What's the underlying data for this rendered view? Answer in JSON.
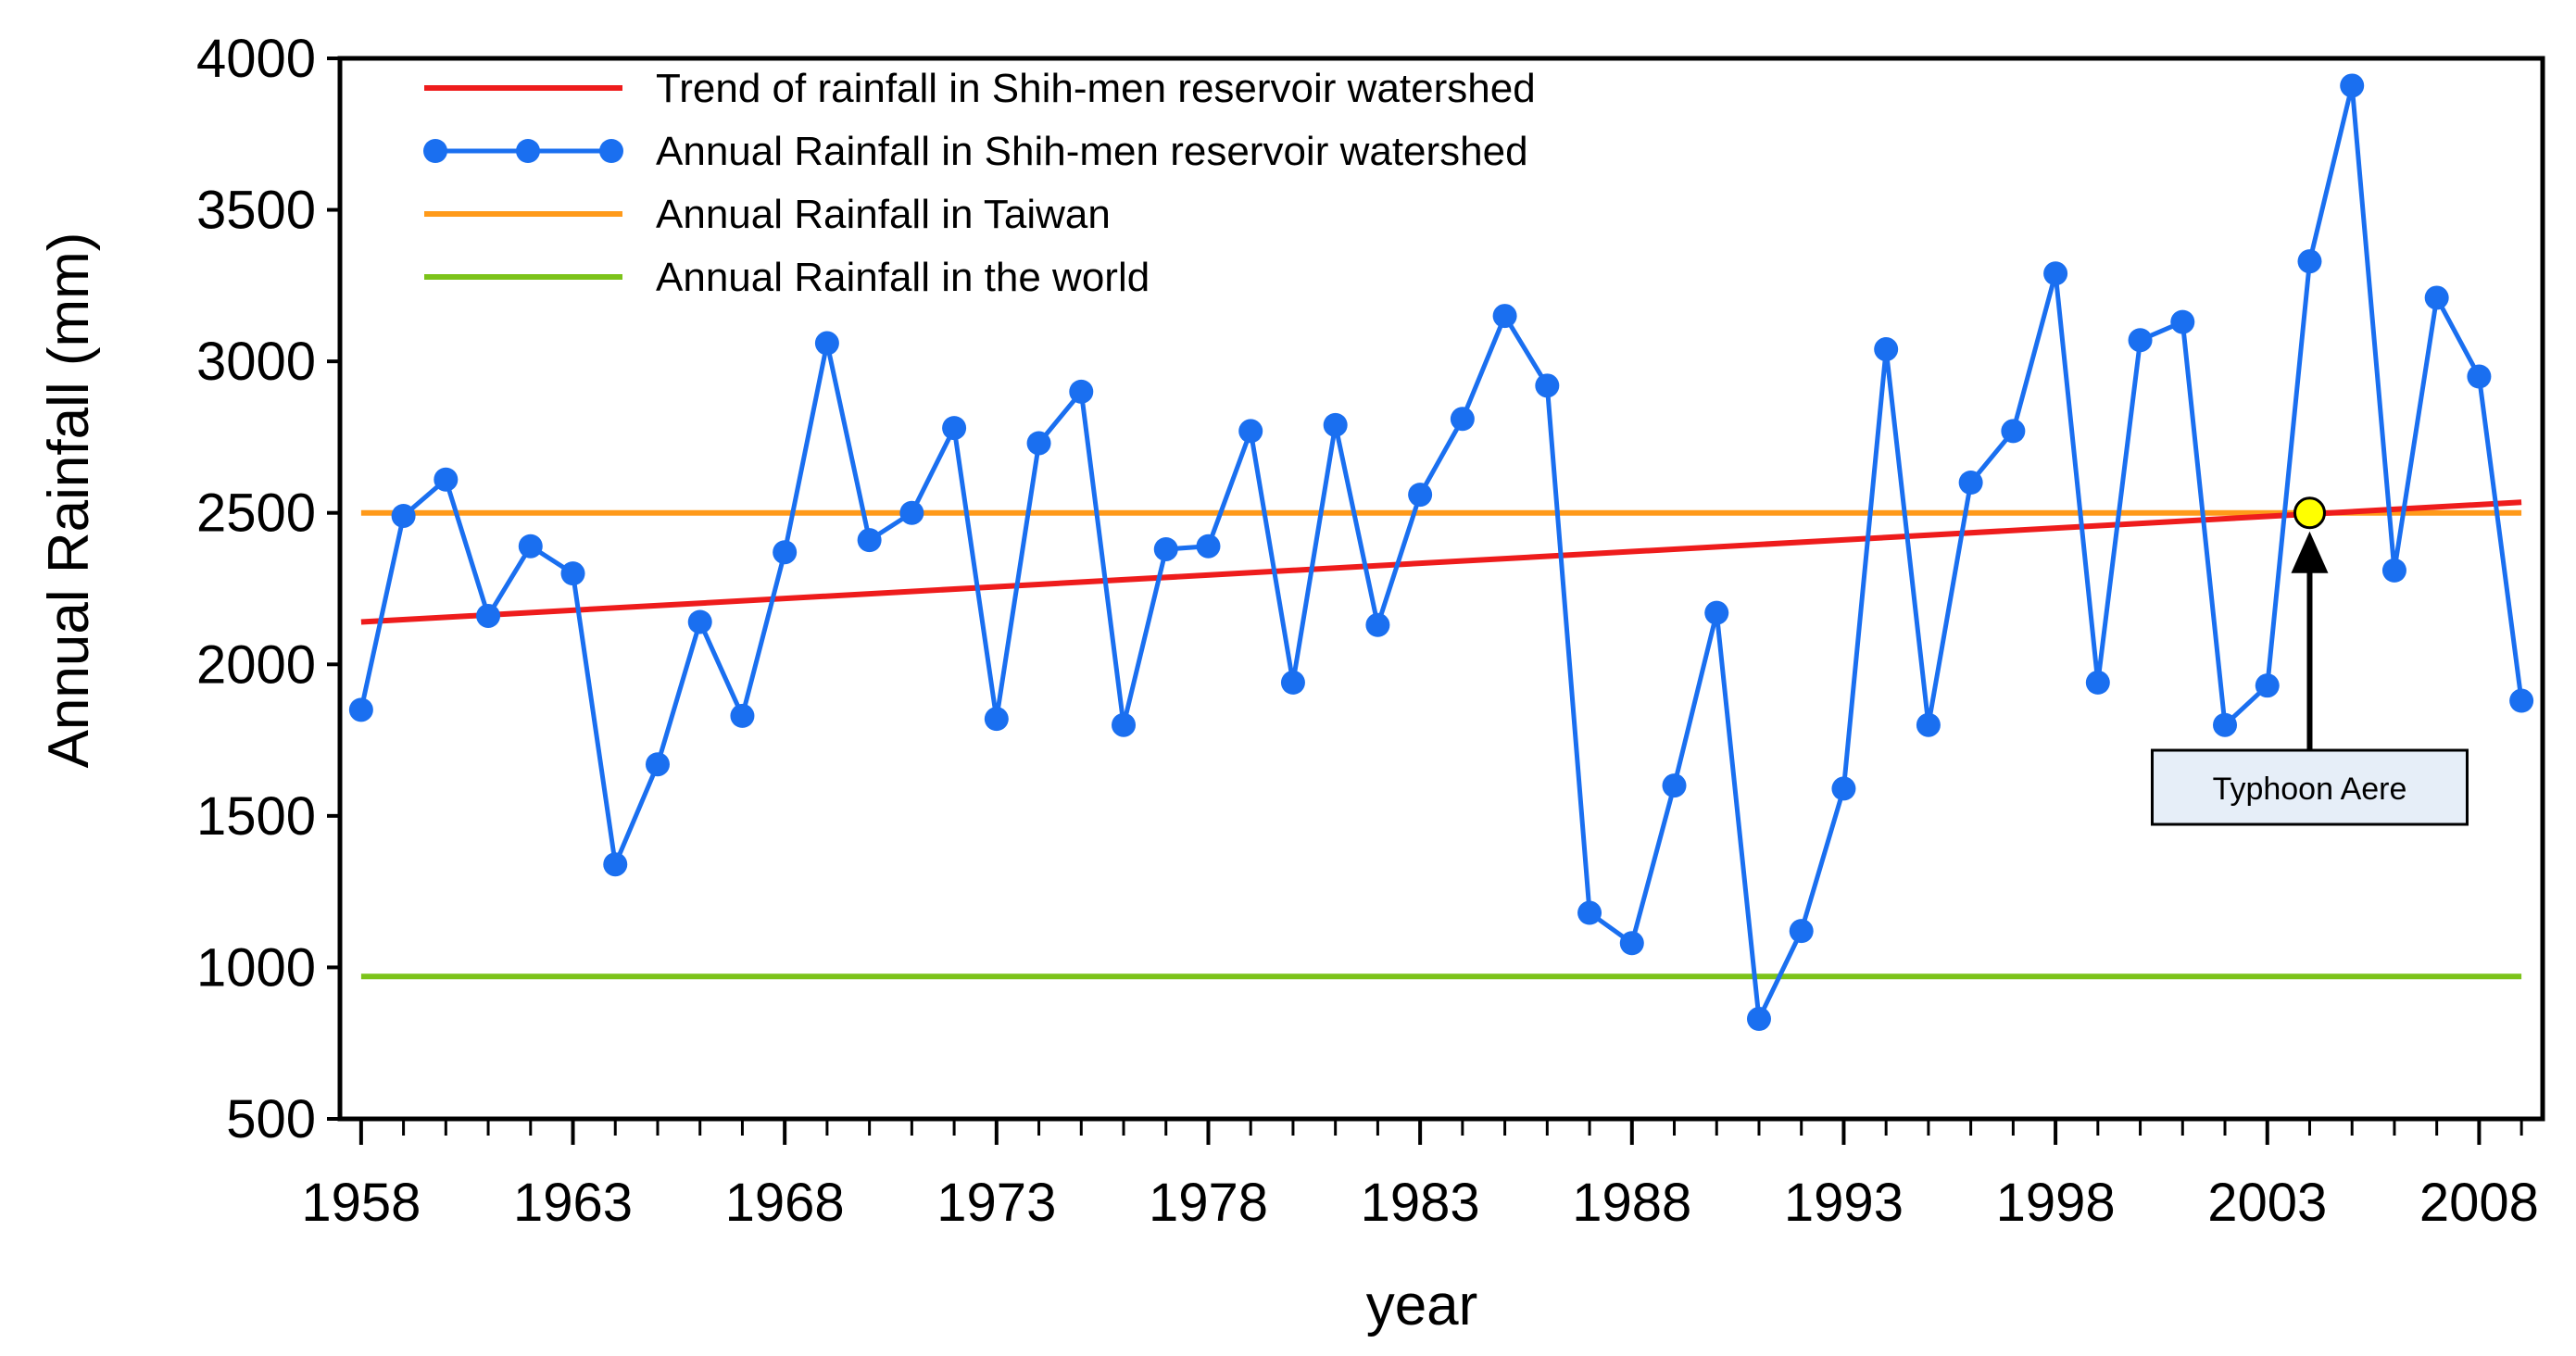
{
  "chart_data": {
    "type": "line",
    "title": "",
    "xlabel": "year",
    "ylabel": "Annual Rainfall (mm)",
    "xlim": [
      1957.5,
      2009.5
    ],
    "ylim": [
      500,
      4000
    ],
    "xticks": [
      1958,
      1963,
      1968,
      1973,
      1978,
      1983,
      1988,
      1993,
      1998,
      2003,
      2008
    ],
    "yticks": [
      500,
      1000,
      1500,
      2000,
      2500,
      3000,
      3500,
      4000
    ],
    "grid": false,
    "legend_position": "top-left",
    "series": [
      {
        "name": "Trend of rainfall in Shih-men reservoir watershed",
        "color": "#ee1c1c",
        "x": [
          1958,
          2009
        ],
        "values": [
          2140,
          2535
        ]
      },
      {
        "name": "Annual Rainfall in Shih-men reservoir watershed",
        "color": "#1a6ff0",
        "x": [
          1958,
          1959,
          1960,
          1961,
          1962,
          1963,
          1964,
          1965,
          1966,
          1967,
          1968,
          1969,
          1970,
          1971,
          1972,
          1973,
          1974,
          1975,
          1976,
          1977,
          1978,
          1979,
          1980,
          1981,
          1982,
          1983,
          1984,
          1985,
          1986,
          1987,
          1988,
          1989,
          1990,
          1991,
          1992,
          1993,
          1994,
          1995,
          1996,
          1997,
          1998,
          1999,
          2000,
          2001,
          2002,
          2003,
          2004,
          2005,
          2006,
          2007,
          2008,
          2009
        ],
        "values": [
          1850,
          2490,
          2610,
          2160,
          2390,
          2300,
          1340,
          1670,
          2140,
          1830,
          2370,
          3060,
          2410,
          2500,
          2780,
          1820,
          2730,
          2900,
          1800,
          2380,
          2390,
          2770,
          1940,
          2790,
          2130,
          2560,
          2810,
          3150,
          2920,
          1180,
          1080,
          1600,
          2170,
          830,
          1120,
          1590,
          3040,
          1800,
          2600,
          2770,
          3290,
          1940,
          3070,
          3130,
          1800,
          1930,
          3330,
          3910,
          2310,
          3210,
          2950,
          1880
        ]
      },
      {
        "name": "Annual Rainfall in Taiwan",
        "color": "#ff9a1a",
        "x": [
          1958,
          2009
        ],
        "values": [
          2500,
          2500
        ]
      },
      {
        "name": "Annual Rainfall in the world",
        "color": "#7cc31a",
        "x": [
          1958,
          2009
        ],
        "values": [
          970,
          970
        ]
      }
    ],
    "annotations": [
      {
        "text": "Typhoon Aere",
        "x": 2004,
        "y": 2500,
        "marker_color": "#ffff00"
      }
    ]
  }
}
